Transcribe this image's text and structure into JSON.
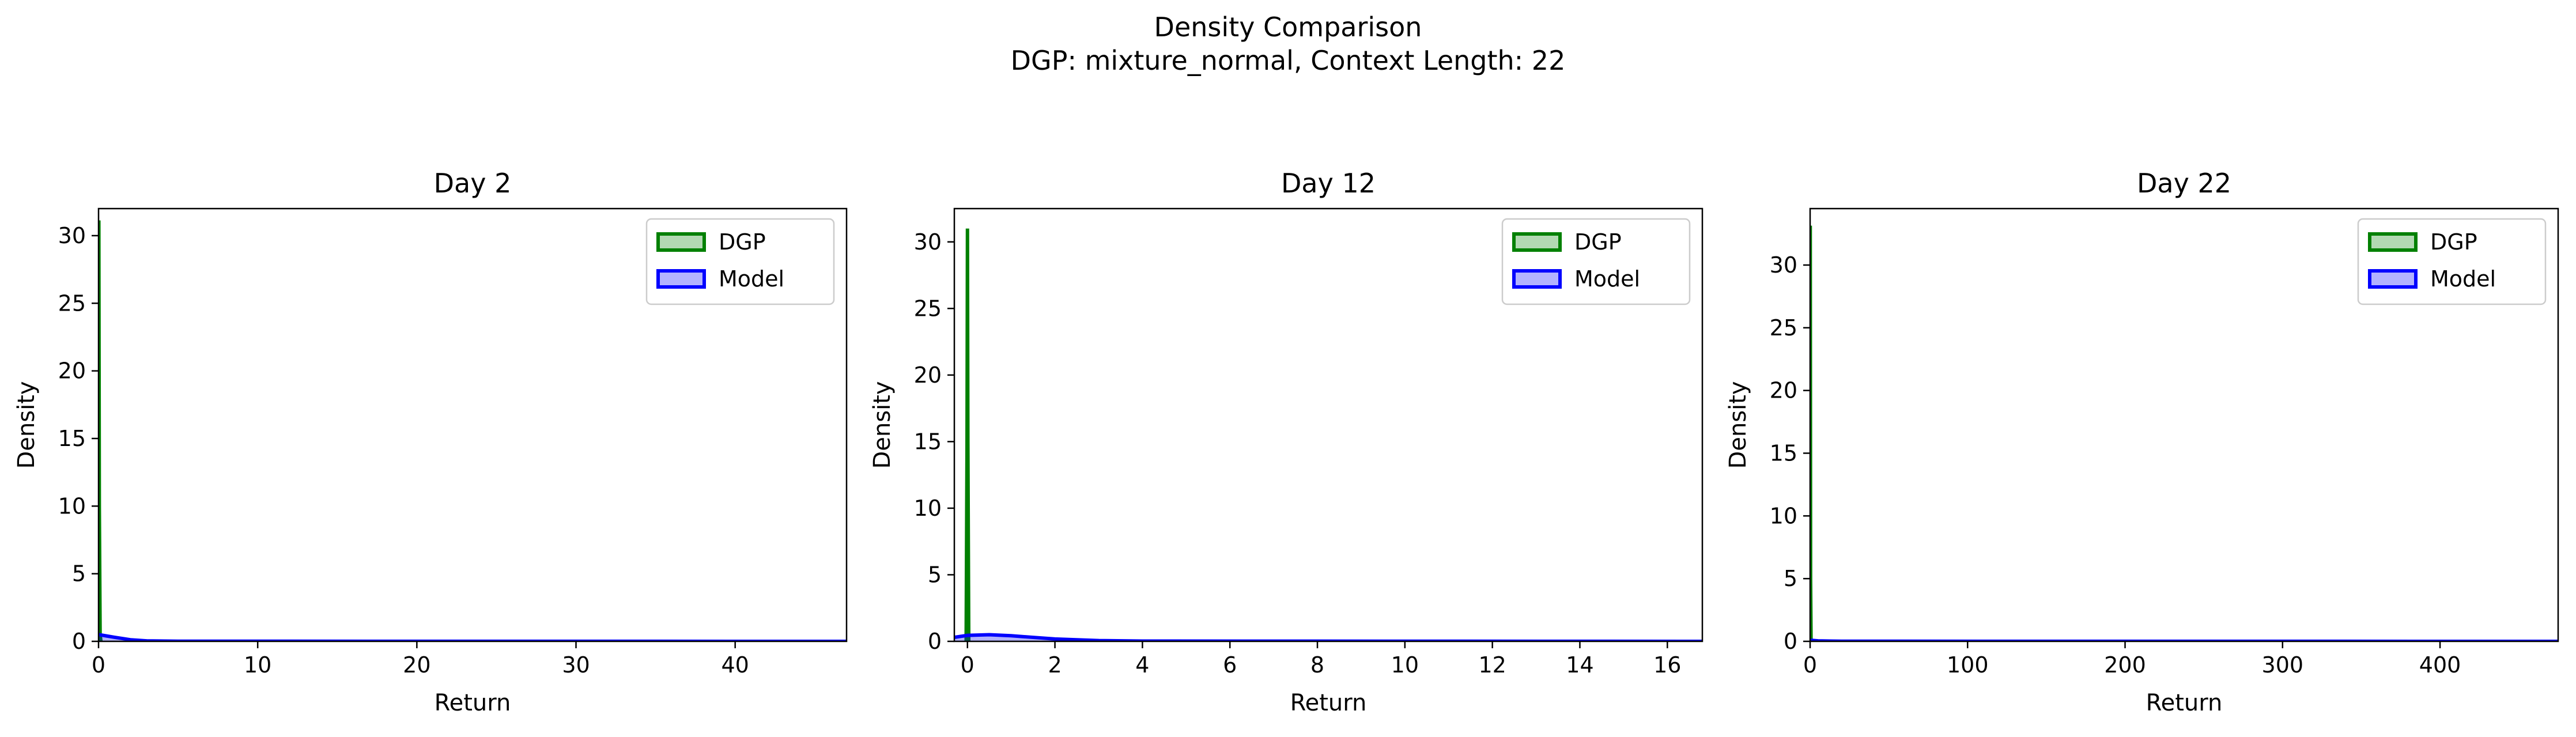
{
  "figure": {
    "suptitle_line1": "Density Comparison",
    "suptitle_line2": "DGP: mixture_normal, Context Length: 22"
  },
  "colors": {
    "dgp": "#008000",
    "model": "#0000ff"
  },
  "chart_data": [
    {
      "type": "area",
      "title": "Day 2",
      "xlabel": "Return",
      "ylabel": "Density",
      "xlim": [
        0,
        47
      ],
      "ylim": [
        0,
        32
      ],
      "xticks": [
        0,
        10,
        20,
        30,
        40
      ],
      "yticks": [
        0,
        5,
        10,
        15,
        20,
        25,
        30
      ],
      "grid": false,
      "legend": "top-right",
      "series": [
        {
          "name": "DGP",
          "color": "#008000",
          "x": [
            0,
            0.02,
            0.05,
            0.1,
            0.15
          ],
          "y": [
            31,
            31,
            10,
            0.5,
            0
          ]
        },
        {
          "name": "Model",
          "color": "#0000ff",
          "x": [
            0,
            0.5,
            1,
            2,
            3,
            5,
            47
          ],
          "y": [
            0.5,
            0.4,
            0.3,
            0.12,
            0.04,
            0.01,
            0
          ]
        }
      ]
    },
    {
      "type": "area",
      "title": "Day 12",
      "xlabel": "Return",
      "ylabel": "Density",
      "xlim": [
        -0.3,
        16.8
      ],
      "ylim": [
        0,
        32.5
      ],
      "xticks": [
        0,
        2,
        4,
        6,
        8,
        10,
        12,
        14,
        16
      ],
      "yticks": [
        0,
        5,
        10,
        15,
        20,
        25,
        30
      ],
      "grid": false,
      "legend": "top-right",
      "series": [
        {
          "name": "DGP",
          "color": "#008000",
          "x": [
            -0.03,
            -0.01,
            0,
            0.01,
            0.03
          ],
          "y": [
            0,
            15,
            31,
            15,
            0
          ]
        },
        {
          "name": "Model",
          "color": "#0000ff",
          "x": [
            -0.3,
            0,
            0.5,
            1,
            1.5,
            2,
            3,
            4,
            16.8
          ],
          "y": [
            0.3,
            0.45,
            0.5,
            0.42,
            0.3,
            0.18,
            0.06,
            0.02,
            0
          ]
        }
      ]
    },
    {
      "type": "area",
      "title": "Day 22",
      "xlabel": "Return",
      "ylabel": "Density",
      "xlim": [
        0,
        475
      ],
      "ylim": [
        0,
        34.5
      ],
      "xticks": [
        0,
        100,
        200,
        300,
        400
      ],
      "yticks": [
        0,
        5,
        10,
        15,
        20,
        25,
        30
      ],
      "grid": false,
      "legend": "top-right",
      "series": [
        {
          "name": "DGP",
          "color": "#008000",
          "x": [
            0,
            0.1,
            0.3,
            0.6
          ],
          "y": [
            33,
            33,
            5,
            0
          ]
        },
        {
          "name": "Model",
          "color": "#0000ff",
          "x": [
            0,
            1,
            5,
            20,
            475
          ],
          "y": [
            0.1,
            0.08,
            0.04,
            0.01,
            0
          ]
        }
      ]
    }
  ]
}
